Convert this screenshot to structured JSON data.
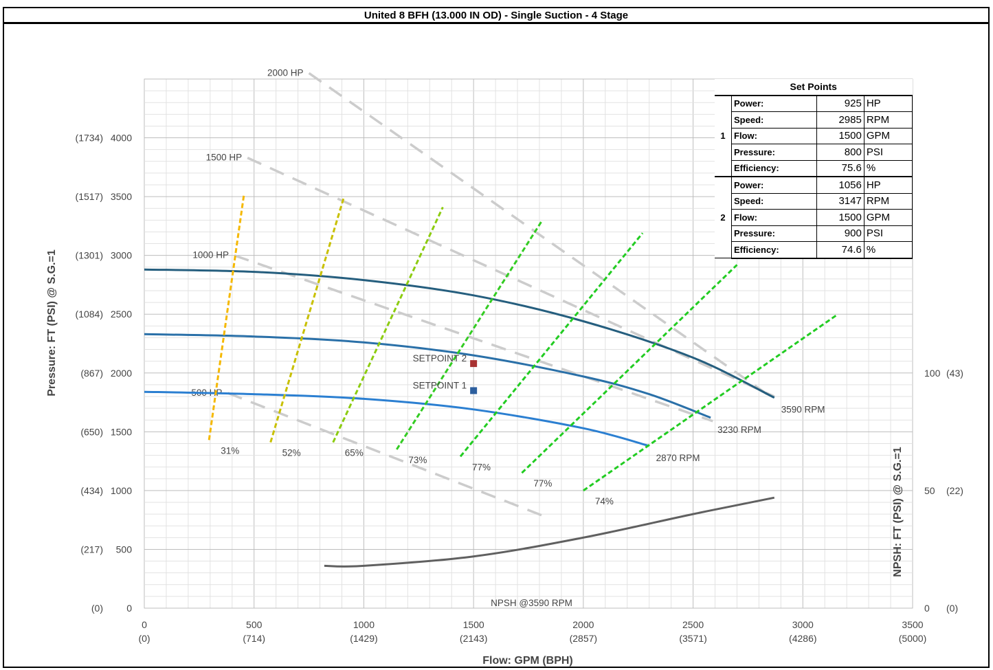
{
  "title": "United 8 BFH (13.000 IN OD) - Single Suction - 4 Stage",
  "chart_data": {
    "type": "line",
    "xlabel": "Flow: GPM (BPH)",
    "ylabel": "Pressure: FT (PSI) @ S.G.=1",
    "y2label": "NPSH: FT (PSI) @ S.G.=1",
    "xlim": [
      0,
      3500
    ],
    "ylim": [
      0,
      4500
    ],
    "y2lim": [
      0,
      225
    ],
    "grid": true,
    "x_ticks": [
      {
        "value": 0,
        "label": "0",
        "sub": "(0)"
      },
      {
        "value": 500,
        "label": "500",
        "sub": "(714)"
      },
      {
        "value": 1000,
        "label": "1000",
        "sub": "(1429)"
      },
      {
        "value": 1500,
        "label": "1500",
        "sub": "(2143)"
      },
      {
        "value": 2000,
        "label": "2000",
        "sub": "(2857)"
      },
      {
        "value": 2500,
        "label": "2500",
        "sub": "(3571)"
      },
      {
        "value": 3000,
        "label": "3000",
        "sub": "(4286)"
      },
      {
        "value": 3500,
        "label": "3500",
        "sub": "(5000)"
      }
    ],
    "y_ticks": [
      {
        "value": 0,
        "label": "0",
        "sub": "(0)"
      },
      {
        "value": 500,
        "label": "500",
        "sub": "(217)"
      },
      {
        "value": 1000,
        "label": "1000",
        "sub": "(434)"
      },
      {
        "value": 1500,
        "label": "1500",
        "sub": "(650)"
      },
      {
        "value": 2000,
        "label": "2000",
        "sub": "(867)"
      },
      {
        "value": 2500,
        "label": "2500",
        "sub": "(1084)"
      },
      {
        "value": 3000,
        "label": "3000",
        "sub": "(1301)"
      },
      {
        "value": 3500,
        "label": "3500",
        "sub": "(1517)"
      },
      {
        "value": 4000,
        "label": "4000",
        "sub": "(1734)"
      }
    ],
    "y2_ticks": [
      {
        "value": 0,
        "label": "0",
        "sub": "(0)"
      },
      {
        "value": 50,
        "label": "50",
        "sub": "(22)"
      },
      {
        "value": 100,
        "label": "100",
        "sub": "(43)"
      }
    ],
    "speed_curves": [
      {
        "label": "3590 RPM",
        "color": "#255e7e",
        "points": [
          [
            0,
            2880
          ],
          [
            500,
            2860
          ],
          [
            1000,
            2790
          ],
          [
            1500,
            2660
          ],
          [
            2000,
            2440
          ],
          [
            2500,
            2130
          ],
          [
            2870,
            1790
          ]
        ]
      },
      {
        "label": "3230 RPM",
        "color": "#2a70a8",
        "points": [
          [
            0,
            2330
          ],
          [
            500,
            2310
          ],
          [
            1000,
            2260
          ],
          [
            1500,
            2150
          ],
          [
            2000,
            1970
          ],
          [
            2300,
            1820
          ],
          [
            2580,
            1620
          ]
        ]
      },
      {
        "label": "2870 RPM",
        "color": "#2b7fd1",
        "points": [
          [
            0,
            1840
          ],
          [
            500,
            1820
          ],
          [
            1000,
            1780
          ],
          [
            1500,
            1690
          ],
          [
            2000,
            1530
          ],
          [
            2300,
            1380
          ]
        ]
      }
    ],
    "hp_lines": [
      {
        "label": "500 HP",
        "points": [
          [
            380,
            1830
          ],
          [
            1810,
            790
          ]
        ]
      },
      {
        "label": "1000 HP",
        "points": [
          [
            410,
            3000
          ],
          [
            2590,
            1590
          ]
        ]
      },
      {
        "label": "1500 HP",
        "points": [
          [
            470,
            3830
          ],
          [
            2870,
            1800
          ]
        ]
      },
      {
        "label": "2000 HP",
        "points": [
          [
            750,
            4550
          ],
          [
            2860,
            1790
          ]
        ]
      }
    ],
    "efficiency_lines": [
      {
        "label": "31%",
        "color": "#f5b800",
        "points": [
          [
            295,
            1430
          ],
          [
            455,
            3530
          ]
        ]
      },
      {
        "label": "52%",
        "color": "#c8c000",
        "points": [
          [
            575,
            1410
          ],
          [
            910,
            3500
          ]
        ]
      },
      {
        "label": "65%",
        "color": "#8ccc10",
        "points": [
          [
            860,
            1410
          ],
          [
            1360,
            3410
          ]
        ]
      },
      {
        "label": "73%",
        "color": "#33cc22",
        "points": [
          [
            1150,
            1350
          ],
          [
            1810,
            3290
          ]
        ]
      },
      {
        "label": "77%",
        "color": "#22cc22",
        "points": [
          [
            1440,
            1290
          ],
          [
            2270,
            3190
          ]
        ]
      },
      {
        "label": "77%",
        "color": "#22cc22",
        "points": [
          [
            1720,
            1150
          ],
          [
            2700,
            2920
          ]
        ]
      },
      {
        "label": "74%",
        "color": "#22cc22",
        "points": [
          [
            2000,
            1000
          ],
          [
            3160,
            2500
          ]
        ]
      }
    ],
    "npsh_curve": {
      "label": "NPSH @3590 RPM",
      "color": "#606060",
      "points": [
        [
          820,
          18
        ],
        [
          1000,
          18
        ],
        [
          1500,
          22
        ],
        [
          2000,
          30
        ],
        [
          2500,
          40
        ],
        [
          2870,
          47
        ]
      ]
    },
    "setpoints": [
      {
        "label": "SETPOINT 1",
        "x": 1500,
        "y": 1850,
        "color": "#2d5f9e"
      },
      {
        "label": "SETPOINT 2",
        "x": 1500,
        "y": 2080,
        "color": "#a83232"
      }
    ],
    "set_points_table": {
      "title": "Set Points",
      "groups": [
        {
          "id": "1",
          "rows": [
            {
              "label": "Power:",
              "value": "925",
              "unit": "HP"
            },
            {
              "label": "Speed:",
              "value": "2985",
              "unit": "RPM"
            },
            {
              "label": "Flow:",
              "value": "1500",
              "unit": "GPM"
            },
            {
              "label": "Pressure:",
              "value": "800",
              "unit": "PSI"
            },
            {
              "label": "Efficiency:",
              "value": "75.6",
              "unit": "%"
            }
          ]
        },
        {
          "id": "2",
          "rows": [
            {
              "label": "Power:",
              "value": "1056",
              "unit": "HP"
            },
            {
              "label": "Speed:",
              "value": "3147",
              "unit": "RPM"
            },
            {
              "label": "Flow:",
              "value": "1500",
              "unit": "GPM"
            },
            {
              "label": "Pressure:",
              "value": "900",
              "unit": "PSI"
            },
            {
              "label": "Efficiency:",
              "value": "74.6",
              "unit": "%"
            }
          ]
        }
      ]
    }
  }
}
